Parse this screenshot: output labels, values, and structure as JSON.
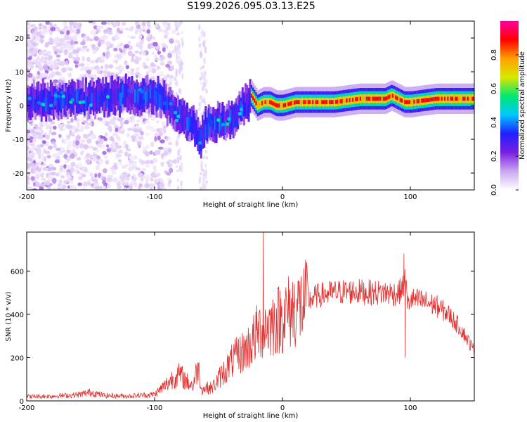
{
  "title": "S199.2026.095.03.13.E25",
  "chart_data": [
    {
      "type": "heatmap",
      "xlabel": "Height of straight line (km)",
      "ylabel": "Frequency (Hz)",
      "xlim": [
        -200,
        150
      ],
      "ylim": [
        -25,
        25
      ],
      "xticks": [
        "-200",
        "-100",
        "0",
        "100"
      ],
      "yticks": [
        "-20",
        "-10",
        "0",
        "10",
        "20"
      ],
      "colorbar": {
        "label": "Normalized spectral amplitude",
        "range": [
          0,
          1
        ],
        "ticks": [
          "0.0",
          "0.2",
          "0.4",
          "0.6",
          "0.8"
        ],
        "colormap": [
          "#ffffff",
          "#c9a6f0",
          "#7a1fe0",
          "#2020ff",
          "#00c8ff",
          "#00e870",
          "#d8e800",
          "#ffa000",
          "#ff0000",
          "#ff00a0"
        ]
      },
      "ridge": {
        "x": [
          -200,
          -180,
          -160,
          -150,
          -140,
          -130,
          -120,
          -110,
          -100,
          -95,
          -90,
          -85,
          -80,
          -75,
          -70,
          -65,
          -60,
          -55,
          -50,
          -45,
          -40,
          -35,
          -30,
          -25,
          -20,
          -15,
          -10,
          -5,
          0,
          10,
          20,
          30,
          40,
          60,
          80,
          85,
          90,
          95,
          100,
          120,
          150
        ],
        "y": [
          1,
          2,
          2,
          2,
          2,
          3,
          3,
          3,
          3,
          2,
          0,
          -2,
          -3,
          -4,
          -6,
          -10,
          -6,
          -5,
          -5,
          -5,
          -4,
          -2,
          0,
          3,
          0,
          1,
          1,
          0,
          0,
          1,
          1,
          1,
          1,
          2,
          2,
          3,
          2,
          1,
          1,
          2,
          2
        ]
      }
    },
    {
      "type": "line",
      "xlabel": "Height of straight line (km)",
      "ylabel": "SNR (10 * v/v)",
      "xlim": [
        -200,
        150
      ],
      "ylim": [
        0,
        780
      ],
      "xticks": [
        "-200",
        "-100",
        "0",
        "100"
      ],
      "yticks": [
        "0",
        "200",
        "400",
        "600"
      ],
      "color": "#e03030",
      "series": [
        {
          "x": [
            -200,
            -180,
            -160,
            -150,
            -140,
            -120,
            -100,
            -90,
            -85,
            -80,
            -75,
            -70,
            -66,
            -63,
            -60,
            -55,
            -50,
            -45,
            -40,
            -35,
            -30,
            -25,
            -22,
            -19,
            -15,
            -10,
            -5,
            0,
            5,
            10,
            15,
            20,
            25,
            30,
            40,
            50,
            60,
            70,
            80,
            90,
            94,
            96,
            98,
            100,
            110,
            120,
            130,
            140,
            150
          ],
          "y": [
            20,
            22,
            28,
            40,
            25,
            22,
            30,
            80,
            110,
            120,
            90,
            70,
            160,
            50,
            60,
            60,
            100,
            140,
            180,
            210,
            230,
            260,
            290,
            320,
            340,
            350,
            370,
            390,
            410,
            430,
            440,
            460,
            480,
            490,
            500,
            505,
            505,
            500,
            500,
            495,
            520,
            560,
            440,
            470,
            460,
            440,
            400,
            330,
            230
          ]
        }
      ],
      "spikes": {
        "x": [
          -15,
          95,
          96
        ],
        "y": [
          780,
          680,
          200
        ]
      }
    }
  ]
}
